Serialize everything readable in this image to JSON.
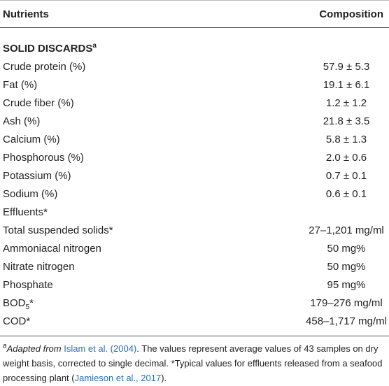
{
  "table": {
    "header": [
      "Nutrients",
      "Composition"
    ],
    "rows": [
      {
        "label": "SOLID DISCARDS",
        "sup": "a"
      },
      {
        "label": "Crude protein (%)",
        "value": "57.9 ± 5.3"
      },
      {
        "label": "Fat (%)",
        "value": "19.1 ± 6.1"
      },
      {
        "label": "Crude fiber (%)",
        "value": "1.2 ± 1.2"
      },
      {
        "label": "Ash (%)",
        "value": "21.8 ± 3.5"
      },
      {
        "label": "Calcium (%)",
        "value": "5.8 ± 1.3"
      },
      {
        "label": "Phosphorous (%)",
        "value": "2.0 ± 0.6"
      },
      {
        "label": "Potassium (%)",
        "value": "0.7 ± 0.1"
      },
      {
        "label": "Sodium (%)",
        "value": "0.6 ± 0.1"
      },
      {
        "label": "Effluents*"
      },
      {
        "label": "Total suspended solids*",
        "value": "27–1,201 mg/ml"
      },
      {
        "label": "Ammoniacal nitrogen",
        "value": "50 mg%"
      },
      {
        "label": "Nitrate nitrogen",
        "value": "50 mg%"
      },
      {
        "label": "Phosphate",
        "value": "95 mg%"
      },
      {
        "label": "BOD",
        "sub": "5",
        "suffix": "*",
        "value": "179–276 mg/ml"
      },
      {
        "label": "COD*",
        "value": "458–1,717 mg/ml"
      }
    ]
  },
  "footnote": {
    "sup": "a",
    "parts": [
      "Adapted from ",
      "Islam et al. (2004)",
      ". The values represent average values of 43 samples on dry weight basis, corrected to single decimal. *Typical values for effluents released from a seafood processing plant (",
      "Jamieson et al., 2017",
      ")."
    ]
  }
}
